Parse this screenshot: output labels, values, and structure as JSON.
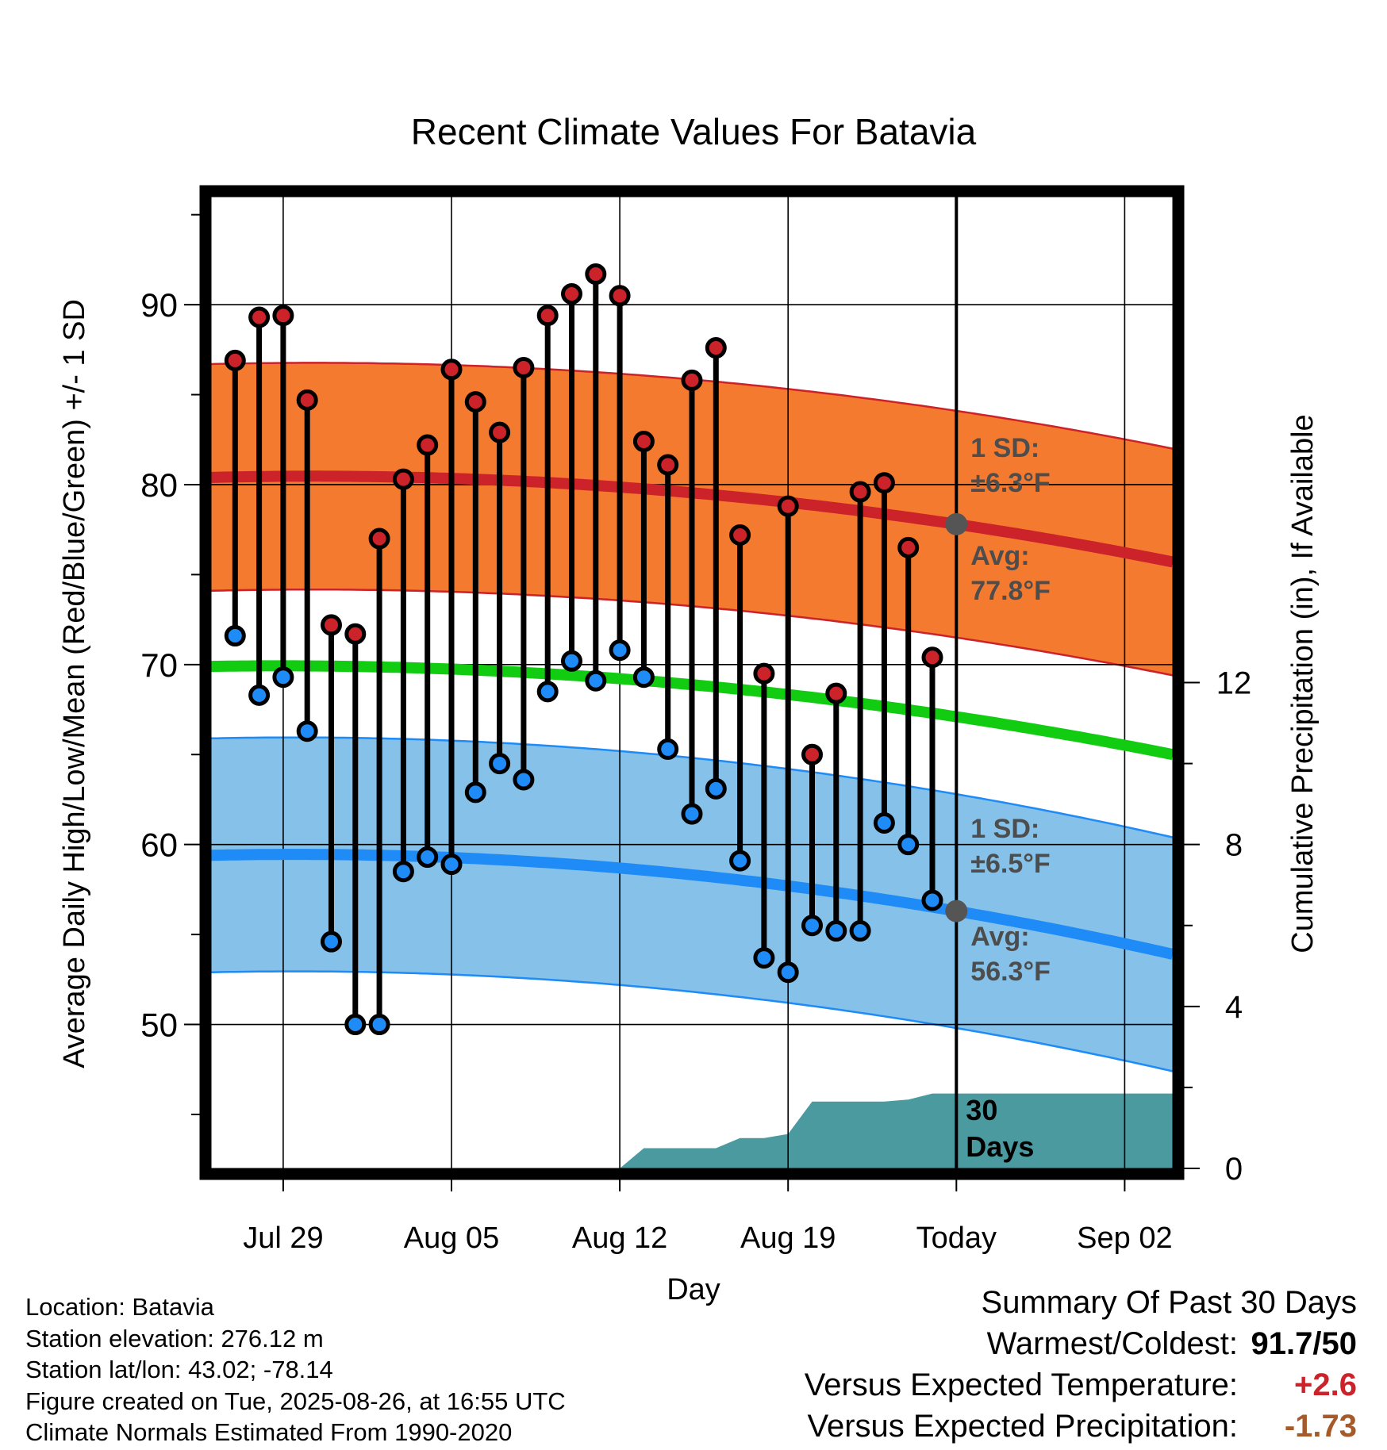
{
  "chart_data": {
    "type": "line",
    "title": "Recent Climate Values For Batavia",
    "xlabel": "Day",
    "ylabel_left": "Average Daily High/Low/Mean (Red/Blue/Green) +/- 1 SD",
    "ylabel_right": "Cumulative Precipitation (in), If Available",
    "xlim": [
      "2025-07-26",
      "2025-09-04"
    ],
    "ylim_left": [
      42,
      96
    ],
    "ylim_right": [
      0,
      24
    ],
    "x_ticks": [
      {
        "date": "2025-07-29",
        "label": "Jul 29"
      },
      {
        "date": "2025-08-05",
        "label": "Aug 05"
      },
      {
        "date": "2025-08-12",
        "label": "Aug 12"
      },
      {
        "date": "2025-08-19",
        "label": "Aug 19"
      },
      {
        "date": "2025-08-26",
        "label": "Today"
      },
      {
        "date": "2025-09-02",
        "label": "Sep 02"
      }
    ],
    "y_ticks_left": [
      "50",
      "60",
      "70",
      "80",
      "90"
    ],
    "y_ticks_right": [
      "0",
      "4",
      "8",
      "12"
    ],
    "today": "2025-08-26",
    "today_label": "Today",
    "days_label_line1": "30",
    "days_label_line2": "Days",
    "normals": {
      "high_avg": [
        {
          "date": "2025-07-26",
          "value": 80.4
        },
        {
          "date": "2025-08-26",
          "value": 77.8
        },
        {
          "date": "2025-09-04",
          "value": 75.7
        }
      ],
      "high_sd": 6.3,
      "low_avg": [
        {
          "date": "2025-07-26",
          "value": 59.4
        },
        {
          "date": "2025-08-26",
          "value": 56.3
        },
        {
          "date": "2025-09-04",
          "value": 53.9
        }
      ],
      "low_sd": 6.5,
      "mean_avg": [
        {
          "date": "2025-07-26",
          "value": 69.9
        },
        {
          "date": "2025-08-26",
          "value": 67.1
        },
        {
          "date": "2025-09-04",
          "value": 65.0
        }
      ]
    },
    "annotations": {
      "high_sd_label": "1 SD:",
      "high_sd_value": "±6.3°F",
      "high_avg_label": "Avg:",
      "high_avg_value": "77.8°F",
      "low_sd_label": "1 SD:",
      "low_sd_value": "±6.5°F",
      "low_avg_label": "Avg:",
      "low_avg_value": "56.3°F"
    },
    "daily": [
      {
        "date": "2025-07-27",
        "high": 86.9,
        "low": 71.6
      },
      {
        "date": "2025-07-28",
        "high": 89.3,
        "low": 68.3
      },
      {
        "date": "2025-07-29",
        "high": 89.4,
        "low": 69.3
      },
      {
        "date": "2025-07-30",
        "high": 84.7,
        "low": 66.3
      },
      {
        "date": "2025-07-31",
        "high": 72.2,
        "low": 54.6
      },
      {
        "date": "2025-08-01",
        "high": 71.7,
        "low": 50.0
      },
      {
        "date": "2025-08-02",
        "high": 77.0,
        "low": 50.0
      },
      {
        "date": "2025-08-03",
        "high": 80.3,
        "low": 58.5
      },
      {
        "date": "2025-08-04",
        "high": 82.2,
        "low": 59.3
      },
      {
        "date": "2025-08-05",
        "high": 86.4,
        "low": 58.9
      },
      {
        "date": "2025-08-06",
        "high": 84.6,
        "low": 62.9
      },
      {
        "date": "2025-08-07",
        "high": 82.9,
        "low": 64.5
      },
      {
        "date": "2025-08-08",
        "high": 86.5,
        "low": 63.6
      },
      {
        "date": "2025-08-09",
        "high": 89.4,
        "low": 68.5
      },
      {
        "date": "2025-08-10",
        "high": 90.6,
        "low": 70.2
      },
      {
        "date": "2025-08-11",
        "high": 91.7,
        "low": 69.1
      },
      {
        "date": "2025-08-12",
        "high": 90.5,
        "low": 70.8
      },
      {
        "date": "2025-08-13",
        "high": 82.4,
        "low": 69.3
      },
      {
        "date": "2025-08-14",
        "high": 81.1,
        "low": 65.3
      },
      {
        "date": "2025-08-15",
        "high": 85.8,
        "low": 61.7
      },
      {
        "date": "2025-08-16",
        "high": 87.6,
        "low": 63.1
      },
      {
        "date": "2025-08-17",
        "high": 77.2,
        "low": 59.1
      },
      {
        "date": "2025-08-18",
        "high": 69.5,
        "low": 53.7
      },
      {
        "date": "2025-08-19",
        "high": 78.8,
        "low": 52.9
      },
      {
        "date": "2025-08-20",
        "high": 65.0,
        "low": 55.5
      },
      {
        "date": "2025-08-21",
        "high": 68.4,
        "low": 55.2
      },
      {
        "date": "2025-08-22",
        "high": 79.6,
        "low": 55.2
      },
      {
        "date": "2025-08-23",
        "high": 80.1,
        "low": 61.2
      },
      {
        "date": "2025-08-24",
        "high": 76.5,
        "low": 60.0
      },
      {
        "date": "2025-08-25",
        "high": 70.4,
        "low": 56.9
      }
    ],
    "precip_cumulative": [
      {
        "date": "2025-08-12",
        "value": 0.0
      },
      {
        "date": "2025-08-13",
        "value": 0.5
      },
      {
        "date": "2025-08-14",
        "value": 0.5
      },
      {
        "date": "2025-08-15",
        "value": 0.5
      },
      {
        "date": "2025-08-16",
        "value": 0.5
      },
      {
        "date": "2025-08-17",
        "value": 0.75
      },
      {
        "date": "2025-08-18",
        "value": 0.75
      },
      {
        "date": "2025-08-19",
        "value": 0.85
      },
      {
        "date": "2025-08-20",
        "value": 1.65
      },
      {
        "date": "2025-08-21",
        "value": 1.65
      },
      {
        "date": "2025-08-22",
        "value": 1.65
      },
      {
        "date": "2025-08-23",
        "value": 1.65
      },
      {
        "date": "2025-08-24",
        "value": 1.7
      },
      {
        "date": "2025-08-25",
        "value": 1.85
      },
      {
        "date": "2025-08-26",
        "value": 1.85
      },
      {
        "date": "2025-09-04",
        "value": 1.85
      }
    ],
    "colors": {
      "high_band": "#f47a30",
      "high_line": "#cc2229",
      "low_band": "#85c1e8",
      "low_line": "#1e8bf7",
      "mean_line": "#11cc11",
      "precip": "#4a9aa0",
      "high_dot": "#cc2229",
      "low_dot": "#1e8bf7",
      "annotation": "#4d4d4d",
      "avg_marker": "#555555"
    }
  },
  "footer": {
    "location": "Location: Batavia",
    "elevation": "Station elevation: 276.12 m",
    "latlon": "Station lat/lon: 43.02; -78.14",
    "created": "Figure created on Tue, 2025-08-26, at 16:55 UTC",
    "normals": "Climate Normals Estimated From 1990-2020"
  },
  "summary": {
    "title": "Summary Of Past 30 Days",
    "warm_cold_label": "Warmest/Coldest:",
    "warm_cold_value": "91.7/50",
    "temp_label": "Versus Expected Temperature:",
    "temp_value": "+2.6",
    "temp_color": "#cc2229",
    "precip_label": "Versus Expected Precipitation:",
    "precip_value": "-1.73",
    "precip_color": "#a65a2a"
  }
}
